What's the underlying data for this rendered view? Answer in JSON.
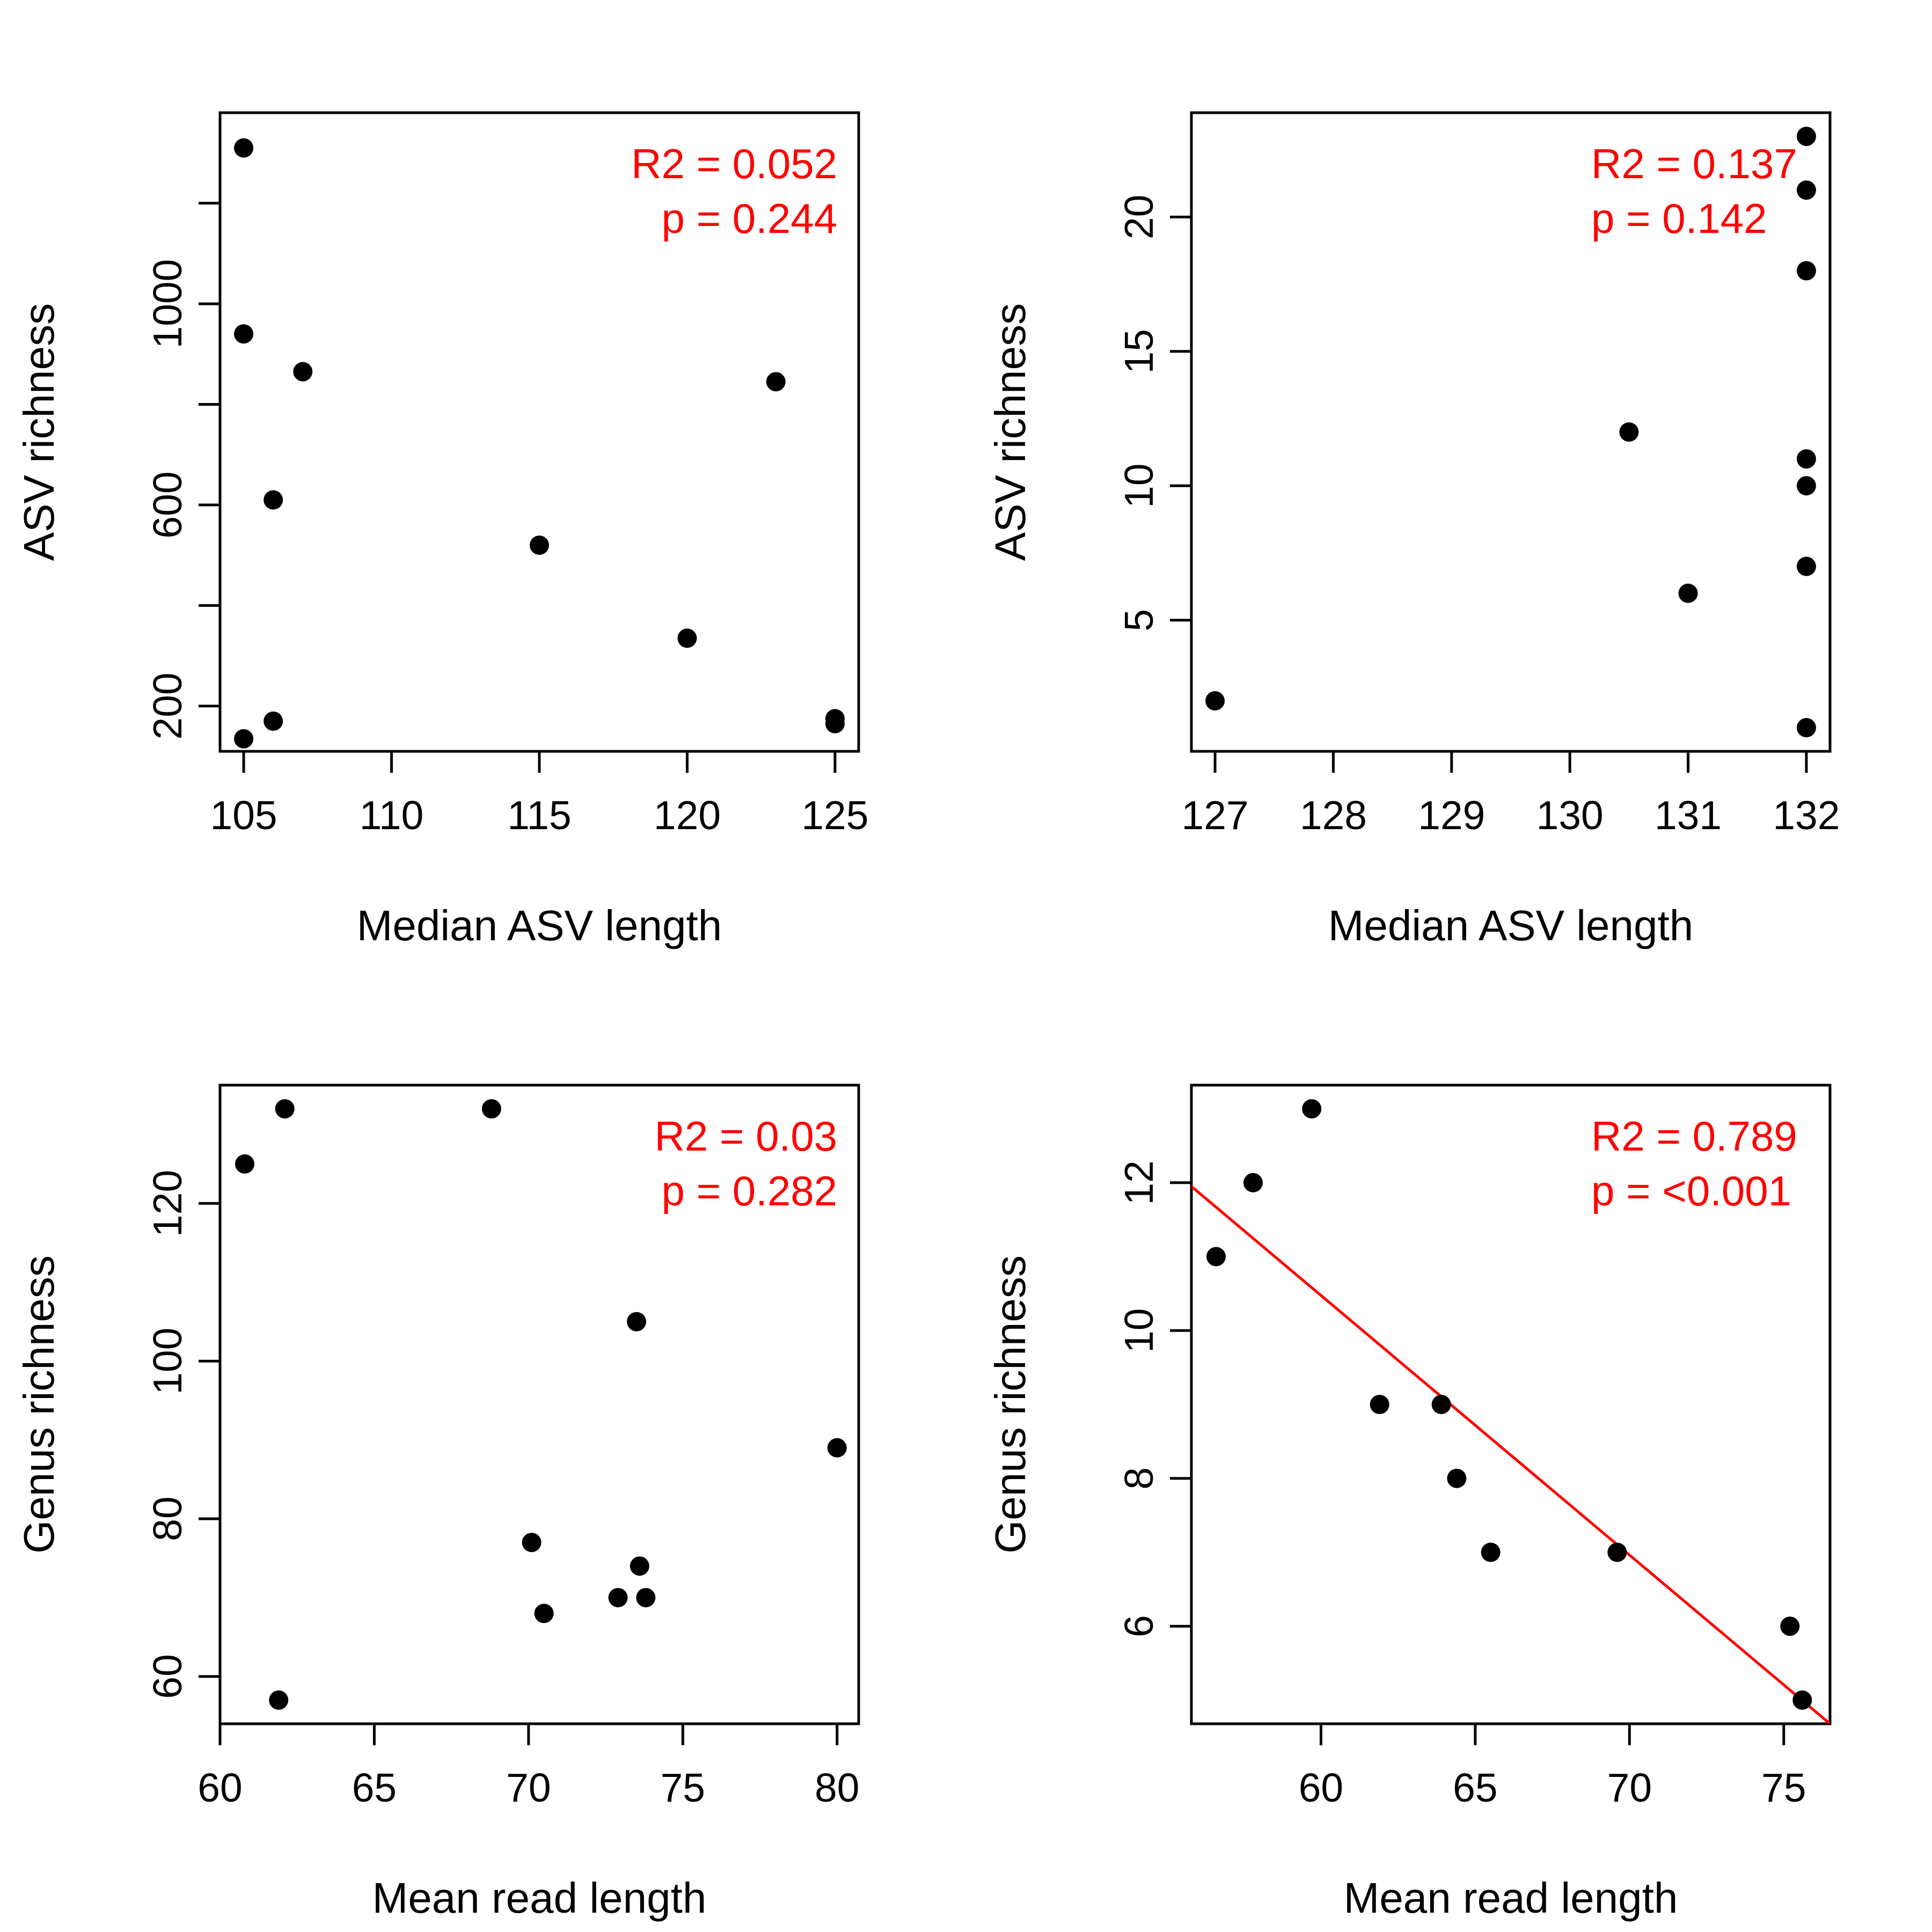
{
  "chart_data": [
    {
      "type": "scatter",
      "xlabel": "Median ASV length",
      "ylabel": "ASV richness",
      "xlim": [
        104.2,
        125.8
      ],
      "ylim": [
        110,
        1380
      ],
      "xticks": [
        "105",
        "110",
        "115",
        "120",
        "125"
      ],
      "yticks": [
        "200",
        "600",
        "1000"
      ],
      "y_minor_ticks": [
        400,
        800,
        1200
      ],
      "annotations": [
        "R2 = 0.052",
        "p = 0.244"
      ],
      "annotation_color": "#ff0000",
      "point_color": "#000000",
      "points": [
        {
          "x": 105,
          "y": 1310
        },
        {
          "x": 105,
          "y": 940
        },
        {
          "x": 105,
          "y": 135
        },
        {
          "x": 106,
          "y": 610
        },
        {
          "x": 106,
          "y": 170
        },
        {
          "x": 107,
          "y": 865
        },
        {
          "x": 115,
          "y": 520
        },
        {
          "x": 120,
          "y": 335
        },
        {
          "x": 123,
          "y": 845
        },
        {
          "x": 125,
          "y": 175
        },
        {
          "x": 125,
          "y": 165
        }
      ]
    },
    {
      "type": "scatter",
      "xlabel": "Median ASV length",
      "ylabel": "ASV richness",
      "xlim": [
        126.8,
        132.2
      ],
      "ylim": [
        0.12,
        23.88
      ],
      "xticks": [
        "127",
        "128",
        "129",
        "130",
        "131",
        "132"
      ],
      "yticks": [
        "5",
        "10",
        "15",
        "20"
      ],
      "annotations": [
        "R2 = 0.137",
        "p = 0.142"
      ],
      "annotation_color": "#ff0000",
      "point_color": "#000000",
      "points": [
        {
          "x": 127,
          "y": 2
        },
        {
          "x": 130.5,
          "y": 12
        },
        {
          "x": 131,
          "y": 6
        },
        {
          "x": 132,
          "y": 23
        },
        {
          "x": 132,
          "y": 21
        },
        {
          "x": 132,
          "y": 18
        },
        {
          "x": 132,
          "y": 11
        },
        {
          "x": 132,
          "y": 10
        },
        {
          "x": 132,
          "y": 7
        },
        {
          "x": 132,
          "y": 1
        }
      ]
    },
    {
      "type": "scatter",
      "xlabel": "Mean read length",
      "ylabel": "Genus richness",
      "xlim": [
        60,
        80.7
      ],
      "ylim": [
        54,
        135
      ],
      "xticks": [
        "60",
        "65",
        "70",
        "75",
        "80"
      ],
      "yticks": [
        "60",
        "80",
        "100",
        "120"
      ],
      "annotations": [
        "R2 = 0.03",
        "p = 0.282"
      ],
      "annotation_color": "#ff0000",
      "point_color": "#000000",
      "points": [
        {
          "x": 60.8,
          "y": 125
        },
        {
          "x": 62.1,
          "y": 132
        },
        {
          "x": 61.9,
          "y": 57
        },
        {
          "x": 68.8,
          "y": 132
        },
        {
          "x": 70.1,
          "y": 77
        },
        {
          "x": 70.5,
          "y": 68
        },
        {
          "x": 72.9,
          "y": 70
        },
        {
          "x": 73.5,
          "y": 105
        },
        {
          "x": 73.6,
          "y": 74
        },
        {
          "x": 73.8,
          "y": 70
        },
        {
          "x": 80,
          "y": 89
        }
      ]
    },
    {
      "type": "scatter",
      "xlabel": "Mean read length",
      "ylabel": "Genus richness",
      "xlim": [
        55.8,
        76.5
      ],
      "ylim": [
        4.68,
        13.32
      ],
      "xticks": [
        "60",
        "65",
        "70",
        "75"
      ],
      "yticks": [
        "6",
        "8",
        "10",
        "12"
      ],
      "annotations": [
        "R2 = 0.789",
        "p = <0.001"
      ],
      "annotation_color": "#ff0000",
      "point_color": "#000000",
      "fit_line": {
        "x": [
          55.8,
          76.5
        ],
        "y": [
          11.95,
          4.68
        ],
        "color": "#ff0000"
      },
      "points": [
        {
          "x": 56.6,
          "y": 11
        },
        {
          "x": 57.8,
          "y": 12
        },
        {
          "x": 59.7,
          "y": 13
        },
        {
          "x": 61.9,
          "y": 9
        },
        {
          "x": 63.9,
          "y": 9
        },
        {
          "x": 64.4,
          "y": 8
        },
        {
          "x": 65.5,
          "y": 7
        },
        {
          "x": 69.6,
          "y": 7
        },
        {
          "x": 75.2,
          "y": 6
        },
        {
          "x": 75.6,
          "y": 5
        }
      ]
    }
  ]
}
